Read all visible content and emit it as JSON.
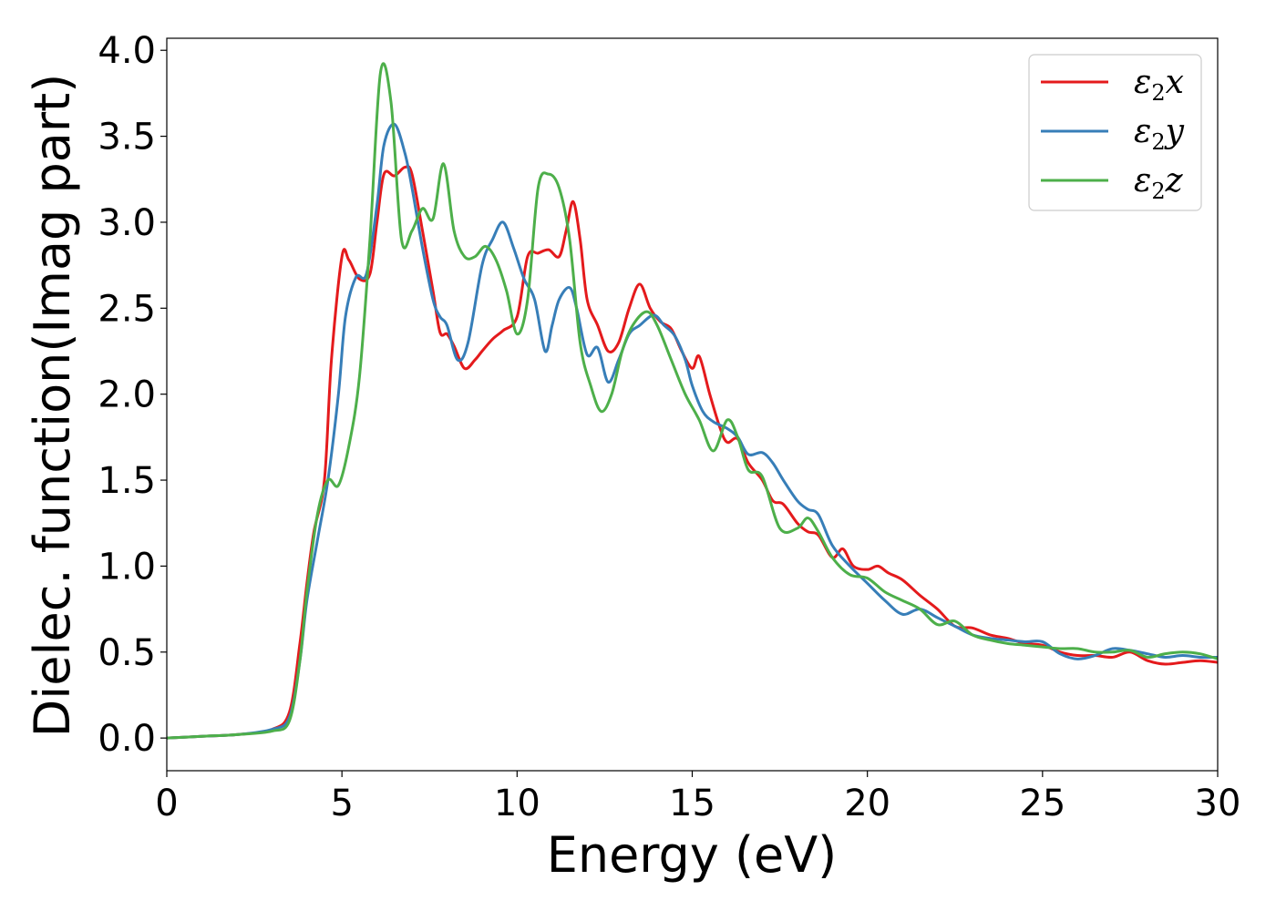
{
  "chart_data": {
    "type": "line",
    "xlabel": "Energy (eV)",
    "ylabel": "Dielec. function(Imag part)",
    "xlim": [
      0,
      30
    ],
    "ylim": [
      -0.19,
      4.07
    ],
    "xticks": [
      0,
      5,
      10,
      15,
      20,
      25,
      30
    ],
    "xtick_labels": [
      "0",
      "5",
      "10",
      "15",
      "20",
      "25",
      "30"
    ],
    "yticks": [
      0.0,
      0.5,
      1.0,
      1.5,
      2.0,
      2.5,
      3.0,
      3.5,
      4.0
    ],
    "ytick_labels": [
      "0.0",
      "0.5",
      "1.0",
      "1.5",
      "2.0",
      "2.5",
      "3.0",
      "3.5",
      "4.0"
    ],
    "grid": false,
    "legend_position": "top-right",
    "series": [
      {
        "name": "ε2x",
        "legend_base": "ε",
        "legend_sub": "2",
        "legend_tail": "x",
        "color": "#e41a1c",
        "points": [
          [
            0,
            0.0
          ],
          [
            1,
            0.01
          ],
          [
            2,
            0.02
          ],
          [
            3,
            0.05
          ],
          [
            3.5,
            0.15
          ],
          [
            3.8,
            0.55
          ],
          [
            4.0,
            0.9
          ],
          [
            4.2,
            1.2
          ],
          [
            4.5,
            1.5
          ],
          [
            4.7,
            2.2
          ],
          [
            5.0,
            2.8
          ],
          [
            5.2,
            2.78
          ],
          [
            5.5,
            2.67
          ],
          [
            5.8,
            2.7
          ],
          [
            6.0,
            3.0
          ],
          [
            6.2,
            3.28
          ],
          [
            6.5,
            3.27
          ],
          [
            6.8,
            3.32
          ],
          [
            7.0,
            3.28
          ],
          [
            7.3,
            2.95
          ],
          [
            7.6,
            2.6
          ],
          [
            7.8,
            2.36
          ],
          [
            8.0,
            2.35
          ],
          [
            8.2,
            2.28
          ],
          [
            8.5,
            2.15
          ],
          [
            8.8,
            2.2
          ],
          [
            9.0,
            2.25
          ],
          [
            9.3,
            2.32
          ],
          [
            9.6,
            2.37
          ],
          [
            10.0,
            2.45
          ],
          [
            10.3,
            2.8
          ],
          [
            10.6,
            2.82
          ],
          [
            10.9,
            2.84
          ],
          [
            11.2,
            2.8
          ],
          [
            11.4,
            2.95
          ],
          [
            11.6,
            3.12
          ],
          [
            11.8,
            2.9
          ],
          [
            12.0,
            2.55
          ],
          [
            12.3,
            2.4
          ],
          [
            12.6,
            2.25
          ],
          [
            12.9,
            2.3
          ],
          [
            13.2,
            2.5
          ],
          [
            13.5,
            2.64
          ],
          [
            13.8,
            2.5
          ],
          [
            14.1,
            2.42
          ],
          [
            14.4,
            2.38
          ],
          [
            14.7,
            2.25
          ],
          [
            15.0,
            2.15
          ],
          [
            15.2,
            2.22
          ],
          [
            15.5,
            2.0
          ],
          [
            15.8,
            1.8
          ],
          [
            16.0,
            1.72
          ],
          [
            16.3,
            1.74
          ],
          [
            16.6,
            1.6
          ],
          [
            17.0,
            1.5
          ],
          [
            17.3,
            1.38
          ],
          [
            17.6,
            1.36
          ],
          [
            18.0,
            1.25
          ],
          [
            18.3,
            1.2
          ],
          [
            18.6,
            1.18
          ],
          [
            19.0,
            1.05
          ],
          [
            19.3,
            1.1
          ],
          [
            19.6,
            1.0
          ],
          [
            20.0,
            0.98
          ],
          [
            20.3,
            1.0
          ],
          [
            20.6,
            0.96
          ],
          [
            21.0,
            0.92
          ],
          [
            21.5,
            0.83
          ],
          [
            22.0,
            0.75
          ],
          [
            22.5,
            0.65
          ],
          [
            23.0,
            0.64
          ],
          [
            23.5,
            0.6
          ],
          [
            24.0,
            0.58
          ],
          [
            24.5,
            0.55
          ],
          [
            25.0,
            0.54
          ],
          [
            25.5,
            0.5
          ],
          [
            26.0,
            0.48
          ],
          [
            26.5,
            0.48
          ],
          [
            27.0,
            0.47
          ],
          [
            27.5,
            0.5
          ],
          [
            28.0,
            0.45
          ],
          [
            28.5,
            0.43
          ],
          [
            29.0,
            0.44
          ],
          [
            29.5,
            0.45
          ],
          [
            30.0,
            0.44
          ]
        ]
      },
      {
        "name": "ε2y",
        "legend_base": "ε",
        "legend_sub": "2",
        "legend_tail": "y",
        "color": "#377eb8",
        "points": [
          [
            0,
            0.0
          ],
          [
            1,
            0.01
          ],
          [
            2,
            0.02
          ],
          [
            3,
            0.05
          ],
          [
            3.5,
            0.12
          ],
          [
            3.8,
            0.45
          ],
          [
            4.0,
            0.8
          ],
          [
            4.3,
            1.15
          ],
          [
            4.6,
            1.5
          ],
          [
            4.9,
            2.0
          ],
          [
            5.1,
            2.45
          ],
          [
            5.4,
            2.68
          ],
          [
            5.7,
            2.7
          ],
          [
            6.0,
            3.1
          ],
          [
            6.2,
            3.45
          ],
          [
            6.5,
            3.57
          ],
          [
            6.8,
            3.4
          ],
          [
            7.0,
            3.2
          ],
          [
            7.3,
            2.85
          ],
          [
            7.6,
            2.55
          ],
          [
            7.8,
            2.45
          ],
          [
            8.0,
            2.4
          ],
          [
            8.3,
            2.2
          ],
          [
            8.6,
            2.3
          ],
          [
            9.0,
            2.75
          ],
          [
            9.3,
            2.9
          ],
          [
            9.6,
            3.0
          ],
          [
            9.9,
            2.85
          ],
          [
            10.2,
            2.67
          ],
          [
            10.5,
            2.55
          ],
          [
            10.8,
            2.25
          ],
          [
            11.0,
            2.4
          ],
          [
            11.2,
            2.55
          ],
          [
            11.5,
            2.62
          ],
          [
            11.7,
            2.5
          ],
          [
            12.0,
            2.23
          ],
          [
            12.3,
            2.27
          ],
          [
            12.6,
            2.07
          ],
          [
            12.9,
            2.2
          ],
          [
            13.2,
            2.35
          ],
          [
            13.5,
            2.4
          ],
          [
            13.9,
            2.46
          ],
          [
            14.2,
            2.4
          ],
          [
            14.5,
            2.34
          ],
          [
            14.8,
            2.2
          ],
          [
            15.0,
            2.05
          ],
          [
            15.3,
            1.9
          ],
          [
            15.6,
            1.84
          ],
          [
            16.0,
            1.8
          ],
          [
            16.3,
            1.75
          ],
          [
            16.6,
            1.65
          ],
          [
            17.0,
            1.66
          ],
          [
            17.3,
            1.6
          ],
          [
            17.6,
            1.5
          ],
          [
            18.0,
            1.38
          ],
          [
            18.3,
            1.33
          ],
          [
            18.6,
            1.3
          ],
          [
            19.0,
            1.12
          ],
          [
            19.5,
            1.0
          ],
          [
            20.0,
            0.9
          ],
          [
            20.5,
            0.8
          ],
          [
            21.0,
            0.72
          ],
          [
            21.5,
            0.75
          ],
          [
            22.0,
            0.7
          ],
          [
            22.5,
            0.65
          ],
          [
            23.0,
            0.6
          ],
          [
            23.5,
            0.58
          ],
          [
            24.0,
            0.57
          ],
          [
            24.5,
            0.56
          ],
          [
            25.0,
            0.56
          ],
          [
            25.5,
            0.49
          ],
          [
            26.0,
            0.46
          ],
          [
            26.5,
            0.48
          ],
          [
            27.0,
            0.52
          ],
          [
            27.5,
            0.51
          ],
          [
            28.0,
            0.49
          ],
          [
            28.5,
            0.47
          ],
          [
            29.0,
            0.48
          ],
          [
            29.5,
            0.47
          ],
          [
            30.0,
            0.47
          ]
        ]
      },
      {
        "name": "ε2z",
        "legend_base": "ε",
        "legend_sub": "2",
        "legend_tail": "z",
        "color": "#4daf4a",
        "points": [
          [
            0,
            0.0
          ],
          [
            1,
            0.01
          ],
          [
            2,
            0.02
          ],
          [
            3,
            0.04
          ],
          [
            3.5,
            0.1
          ],
          [
            3.8,
            0.45
          ],
          [
            4.0,
            0.85
          ],
          [
            4.3,
            1.3
          ],
          [
            4.6,
            1.5
          ],
          [
            4.9,
            1.47
          ],
          [
            5.2,
            1.7
          ],
          [
            5.5,
            2.1
          ],
          [
            5.8,
            2.9
          ],
          [
            6.1,
            3.87
          ],
          [
            6.4,
            3.7
          ],
          [
            6.7,
            2.9
          ],
          [
            7.0,
            2.95
          ],
          [
            7.3,
            3.08
          ],
          [
            7.6,
            3.02
          ],
          [
            7.9,
            3.34
          ],
          [
            8.2,
            2.95
          ],
          [
            8.5,
            2.8
          ],
          [
            8.8,
            2.8
          ],
          [
            9.1,
            2.86
          ],
          [
            9.4,
            2.78
          ],
          [
            9.7,
            2.6
          ],
          [
            10.0,
            2.35
          ],
          [
            10.3,
            2.55
          ],
          [
            10.6,
            3.2
          ],
          [
            10.9,
            3.28
          ],
          [
            11.2,
            3.2
          ],
          [
            11.5,
            2.9
          ],
          [
            11.8,
            2.3
          ],
          [
            12.1,
            2.05
          ],
          [
            12.4,
            1.9
          ],
          [
            12.7,
            2.0
          ],
          [
            13.0,
            2.25
          ],
          [
            13.3,
            2.4
          ],
          [
            13.7,
            2.48
          ],
          [
            14.0,
            2.4
          ],
          [
            14.4,
            2.2
          ],
          [
            14.8,
            2.0
          ],
          [
            15.2,
            1.85
          ],
          [
            15.6,
            1.67
          ],
          [
            16.0,
            1.85
          ],
          [
            16.3,
            1.75
          ],
          [
            16.6,
            1.56
          ],
          [
            17.0,
            1.52
          ],
          [
            17.5,
            1.22
          ],
          [
            18.0,
            1.22
          ],
          [
            18.3,
            1.28
          ],
          [
            18.6,
            1.2
          ],
          [
            19.0,
            1.05
          ],
          [
            19.5,
            0.95
          ],
          [
            20.0,
            0.93
          ],
          [
            20.5,
            0.85
          ],
          [
            21.0,
            0.8
          ],
          [
            21.5,
            0.75
          ],
          [
            22.0,
            0.66
          ],
          [
            22.5,
            0.68
          ],
          [
            23.0,
            0.6
          ],
          [
            23.5,
            0.57
          ],
          [
            24.0,
            0.55
          ],
          [
            24.5,
            0.54
          ],
          [
            25.0,
            0.53
          ],
          [
            25.5,
            0.52
          ],
          [
            26.0,
            0.52
          ],
          [
            26.5,
            0.5
          ],
          [
            27.0,
            0.5
          ],
          [
            27.5,
            0.51
          ],
          [
            28.0,
            0.47
          ],
          [
            28.5,
            0.49
          ],
          [
            29.0,
            0.5
          ],
          [
            29.5,
            0.49
          ],
          [
            30.0,
            0.46
          ]
        ]
      }
    ]
  }
}
